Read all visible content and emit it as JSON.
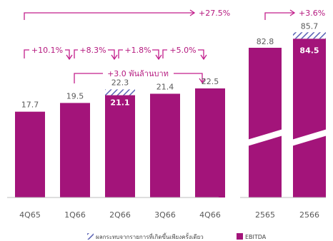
{
  "colors": {
    "bar": "#a3147a",
    "accent": "#c21f8c",
    "hatch": "#5a63b5",
    "label": "#5a5a5a"
  },
  "chart_data": [
    {
      "type": "bar",
      "categories": [
        "4Q65",
        "1Q66",
        "2Q66",
        "3Q66",
        "4Q66"
      ],
      "series": [
        {
          "name": "EBITDA",
          "values": [
            17.7,
            19.5,
            21.1,
            21.4,
            22.5
          ]
        },
        {
          "name": "ผลกระทบจากรายการที่เกิดขึ้นเพียงครั้งเดียว",
          "values": [
            0,
            0,
            1.2,
            0,
            0
          ]
        }
      ],
      "value_labels": [
        "17.7",
        "19.5",
        "22.3",
        "21.4",
        "22.5"
      ],
      "inner_labels": [
        "",
        "",
        "21.1",
        "",
        ""
      ],
      "ylim": [
        0,
        30
      ],
      "annotations": {
        "overall": "+27.5%",
        "qoq": [
          "+10.1%",
          "+8.3%",
          "+1.8%",
          "+5.0%"
        ],
        "absolute": "+3.0 พันล้านบาท"
      }
    },
    {
      "type": "bar",
      "categories": [
        "2565",
        "2566"
      ],
      "series": [
        {
          "name": "EBITDA",
          "values": [
            82.8,
            84.5
          ]
        },
        {
          "name": "ผลกระทบจากรายการที่เกิดขึ้นเพียงครั้งเดียว",
          "values": [
            0,
            1.2
          ]
        }
      ],
      "value_labels": [
        "82.8",
        "85.7"
      ],
      "inner_labels": [
        "",
        "84.5"
      ],
      "axis_break": true,
      "annotations": {
        "yoy": "+3.6%"
      }
    }
  ],
  "legend": {
    "onetime_label": "ผลกระทบจากรายการที่เกิดขึ้นเพียงครั้งเดียว",
    "ebitda_label": "EBITDA"
  }
}
